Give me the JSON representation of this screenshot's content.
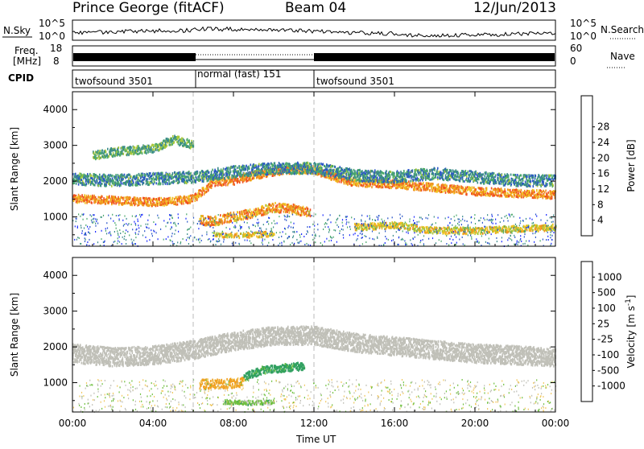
{
  "header": {
    "station": "Prince George (fitACF)",
    "beam": "Beam 04",
    "date": "12/Jun/2013"
  },
  "nsky_panel": {
    "left_label": "N.Sky",
    "right_label": "N.Search",
    "ticks": [
      "10^5",
      "10^0"
    ]
  },
  "freq_panel": {
    "label_line1": "Freq.",
    "label_line2": "[MHz]",
    "left_ticks": [
      "18",
      "8"
    ],
    "right_ticks": [
      "60",
      "0"
    ],
    "right_label": "Nave"
  },
  "cpid_panel": {
    "label": "CPID",
    "segments": [
      {
        "start_hour": 0,
        "end_hour": 6,
        "text": "twofsound 3501"
      },
      {
        "start_hour": 6,
        "end_hour": 12,
        "text": "normal (fast) 151"
      },
      {
        "start_hour": 12,
        "end_hour": 24,
        "text": "twofsound 3501"
      }
    ]
  },
  "colors": {
    "power": [
      "#1c2cff",
      "#2a55c8",
      "#3a8a8a",
      "#4aa86a",
      "#a8c838",
      "#f0c020",
      "#f09020",
      "#f05020",
      "#f01818"
    ],
    "velocity": [
      "#e01818",
      "#f06020",
      "#f0a020",
      "#f0c860",
      "#c0c0b8",
      "#70c040",
      "#30a060",
      "#2a70a0",
      "#2838a8"
    ]
  },
  "chart_data": [
    {
      "type": "heatmap",
      "quantity": "Power",
      "ylabel": "Slant Range [km]",
      "ylim": [
        180,
        4500
      ],
      "yticks": [
        "1000",
        "2000",
        "3000",
        "4000"
      ],
      "xlim": [
        0,
        24
      ],
      "colorbar_label": "Power [dB]",
      "colorbar_ticks": [
        "4",
        "8",
        "12",
        "16",
        "20",
        "24",
        "28"
      ],
      "bands": [
        {
          "points": [
            [
              0,
              1500
            ],
            [
              2,
              1450
            ],
            [
              4,
              1400
            ],
            [
              5,
              1430
            ],
            [
              6,
              1500
            ],
            [
              7,
              1950
            ],
            [
              8,
              2000
            ],
            [
              9,
              2150
            ],
            [
              10,
              2250
            ],
            [
              11,
              2300
            ],
            [
              12,
              2300
            ],
            [
              13,
              2100
            ],
            [
              14,
              1950
            ],
            [
              16,
              1900
            ],
            [
              18,
              1800
            ],
            [
              20,
              1700
            ],
            [
              22,
              1650
            ],
            [
              24,
              1600
            ]
          ],
          "width": 220,
          "level": 26
        },
        {
          "points": [
            [
              0,
              2050
            ],
            [
              2,
              2000
            ],
            [
              4,
              2050
            ],
            [
              6,
              2100
            ],
            [
              8,
              2250
            ],
            [
              10,
              2350
            ],
            [
              12,
              2350
            ],
            [
              14,
              2150
            ],
            [
              16,
              2100
            ],
            [
              18,
              2200
            ],
            [
              20,
              2100
            ],
            [
              22,
              2000
            ],
            [
              24,
              2000
            ]
          ],
          "width": 320,
          "level": 11
        },
        {
          "points": [
            [
              6.3,
              900
            ],
            [
              7,
              860
            ],
            [
              8,
              1000
            ],
            [
              9,
              1100
            ],
            [
              10,
              1250
            ],
            [
              11,
              1200
            ],
            [
              11.8,
              1100
            ]
          ],
          "width": 260,
          "level": 25
        },
        {
          "points": [
            [
              14,
              700
            ],
            [
              16,
              750
            ],
            [
              18,
              600
            ],
            [
              20,
              600
            ],
            [
              22,
              650
            ],
            [
              24,
              700
            ]
          ],
          "width": 180,
          "level": 21
        },
        {
          "points": [
            [
              7,
              500
            ],
            [
              8,
              470
            ],
            [
              9,
              480
            ],
            [
              10,
              520
            ]
          ],
          "width": 140,
          "level": 22
        },
        {
          "points": [
            [
              1,
              2700
            ],
            [
              2,
              2800
            ],
            [
              4,
              2900
            ],
            [
              5,
              3150
            ],
            [
              6,
              3000
            ]
          ],
          "width": 240,
          "level": 14
        }
      ]
    },
    {
      "type": "heatmap",
      "quantity": "Velocity",
      "ylabel": "Slant Range [km]",
      "ylim": [
        180,
        4500
      ],
      "yticks": [
        "1000",
        "2000",
        "3000",
        "4000"
      ],
      "xlim": [
        0,
        24
      ],
      "xticks": [
        "00:00",
        "04:00",
        "08:00",
        "12:00",
        "16:00",
        "20:00",
        "00:00"
      ],
      "xlabel": "Time UT",
      "colorbar_label": "Velocity [m s^-1]",
      "colorbar_ticks": [
        "1000",
        "500",
        "100",
        "25",
        "-25",
        "-100",
        "-500",
        "-1000"
      ],
      "bands": [
        {
          "points": [
            [
              0,
              1800
            ],
            [
              2,
              1700
            ],
            [
              4,
              1750
            ],
            [
              6,
              1900
            ],
            [
              8,
              2150
            ],
            [
              10,
              2300
            ],
            [
              12,
              2300
            ],
            [
              14,
              2100
            ],
            [
              16,
              2000
            ],
            [
              18,
              1900
            ],
            [
              20,
              1800
            ],
            [
              22,
              1750
            ],
            [
              24,
              1700
            ]
          ],
          "width": 520,
          "level": 0
        },
        {
          "points": [
            [
              6.3,
              950
            ],
            [
              7.5,
              950
            ],
            [
              8.5,
              1000
            ]
          ],
          "width": 260,
          "level": -150
        },
        {
          "points": [
            [
              8.5,
              1150
            ],
            [
              9.5,
              1350
            ],
            [
              10.5,
              1400
            ],
            [
              11.5,
              1450
            ]
          ],
          "width": 220,
          "level": 200
        },
        {
          "points": [
            [
              7.5,
              450
            ],
            [
              8.5,
              420
            ],
            [
              10,
              430
            ]
          ],
          "width": 120,
          "level": 60
        }
      ]
    }
  ],
  "time_axis": {
    "xlabel": "Time UT",
    "ticks": [
      "00:00",
      "04:00",
      "08:00",
      "12:00",
      "16:00",
      "20:00",
      "00:00"
    ]
  }
}
